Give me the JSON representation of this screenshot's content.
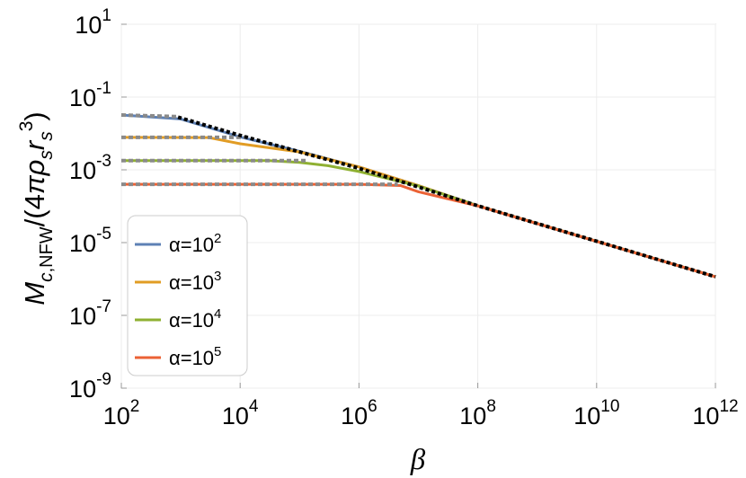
{
  "chart_data": {
    "type": "line",
    "xlabel": "β",
    "ylabel": "M_c,NFW/(4πρ_s r_s^3)",
    "x_scale": "log",
    "y_scale": "log",
    "xlim": [
      100,
      1000000000000
    ],
    "ylim": [
      1e-09,
      10
    ],
    "grid": true,
    "legend_position": "bottom-left",
    "x_ticks": [
      {
        "value": 100,
        "base": "10",
        "exp": "2"
      },
      {
        "value": 10000,
        "base": "10",
        "exp": "4"
      },
      {
        "value": 1000000,
        "base": "10",
        "exp": "6"
      },
      {
        "value": 100000000,
        "base": "10",
        "exp": "8"
      },
      {
        "value": 10000000000,
        "base": "10",
        "exp": "10"
      },
      {
        "value": 1000000000000,
        "base": "10",
        "exp": "12"
      }
    ],
    "y_ticks": [
      {
        "value": 1e-09,
        "base": "10",
        "exp": "-9"
      },
      {
        "value": 1e-07,
        "base": "10",
        "exp": "-7"
      },
      {
        "value": 1e-05,
        "base": "10",
        "exp": "-5"
      },
      {
        "value": 0.001,
        "base": "10",
        "exp": "-3"
      },
      {
        "value": 0.1,
        "base": "10",
        "exp": "-1"
      },
      {
        "value": 10,
        "base": "10",
        "exp": "1"
      }
    ],
    "series": [
      {
        "name": "α=10^2",
        "label_main": "α=10",
        "label_exp": "2",
        "color": "#5e81b5",
        "style": "solid",
        "x": [
          100,
          1000,
          10000,
          100000,
          1000000,
          10000000,
          100000000,
          1000000000000
        ],
        "y": [
          0.032,
          0.025,
          0.008,
          0.0032,
          0.0012,
          0.00037,
          0.000103,
          1.15e-06
        ]
      },
      {
        "name": "α=10^3",
        "label_main": "α=10",
        "label_exp": "3",
        "color": "#e19c24",
        "style": "solid",
        "x": [
          100,
          3000,
          10000,
          100000,
          1000000,
          10000000,
          100000000,
          1000000000000
        ],
        "y": [
          0.0078,
          0.0077,
          0.0052,
          0.0031,
          0.0012,
          0.00037,
          0.000103,
          1.15e-06
        ]
      },
      {
        "name": "α=10^4",
        "label_main": "α=10",
        "label_exp": "4",
        "color": "#8fb032",
        "style": "solid",
        "x": [
          100,
          30000,
          100000,
          300000,
          1000000,
          10000000,
          100000000,
          1000000000000
        ],
        "y": [
          0.0018,
          0.0018,
          0.0016,
          0.0013,
          0.0009,
          0.00036,
          0.000103,
          1.15e-06
        ]
      },
      {
        "name": "α=10^5",
        "label_main": "α=10",
        "label_exp": "5",
        "color": "#eb6235",
        "style": "solid",
        "x": [
          100,
          1000000,
          5000000,
          10000000,
          100000000,
          1000000000000
        ],
        "y": [
          0.0004,
          0.0004,
          0.00037,
          0.00025,
          0.000102,
          1.15e-06
        ]
      },
      {
        "name": "",
        "color": "#000000",
        "style": "dotted",
        "x": [
          900,
          10000,
          1000000,
          100000000,
          1000000000000
        ],
        "y": [
          0.028,
          0.0088,
          0.0011,
          0.000103,
          1.15e-06
        ]
      },
      {
        "name": "",
        "color": "#8a8a8a",
        "style": "dashed",
        "x": [
          100,
          900
        ],
        "y": [
          0.032,
          0.029
        ]
      },
      {
        "name": "",
        "color": "#8a8a8a",
        "style": "dashed",
        "x": [
          100,
          12000
        ],
        "y": [
          0.0078,
          0.0078
        ]
      },
      {
        "name": "",
        "color": "#8a8a8a",
        "style": "dashed",
        "x": [
          100,
          140000
        ],
        "y": [
          0.0018,
          0.0018
        ]
      },
      {
        "name": "",
        "color": "#8a8a8a",
        "style": "dashed",
        "x": [
          100,
          4500000
        ],
        "y": [
          0.0004,
          0.0004
        ]
      }
    ]
  }
}
